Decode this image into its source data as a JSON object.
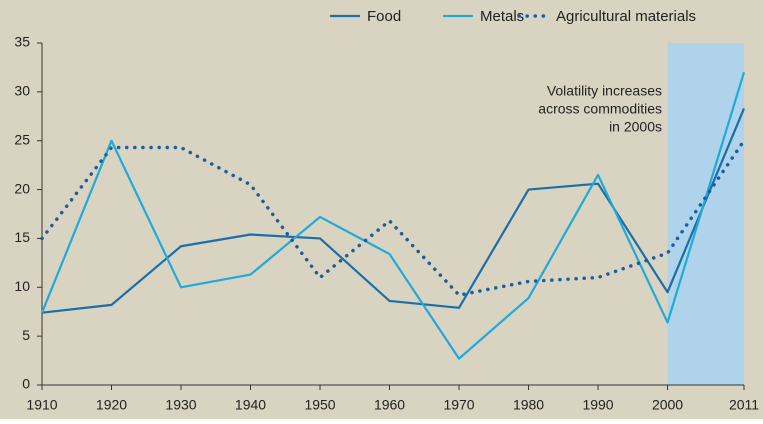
{
  "chart_data": {
    "type": "line",
    "x": [
      1910,
      1920,
      1930,
      1940,
      1950,
      1960,
      1970,
      1980,
      1990,
      2000,
      2011
    ],
    "series": [
      {
        "name": "Food",
        "color": "#1b6ea8",
        "style": "solid",
        "values": [
          7.4,
          8.2,
          14.2,
          15.4,
          15.0,
          8.6,
          7.9,
          20.0,
          20.6,
          9.5,
          28.3
        ]
      },
      {
        "name": "Metals",
        "color": "#1faad9",
        "style": "solid",
        "values": [
          7.4,
          25.0,
          10.0,
          11.3,
          17.2,
          13.4,
          2.7,
          8.9,
          21.5,
          6.4,
          32.0
        ]
      },
      {
        "name": "Agricultural materials",
        "color": "#1b5d9e",
        "style": "dotted",
        "values": [
          15.0,
          24.3,
          24.3,
          20.5,
          11.0,
          16.8,
          9.2,
          10.6,
          11.0,
          13.5,
          25.0
        ]
      }
    ],
    "xlim": [
      1910,
      2011
    ],
    "xticks": [
      1910,
      1920,
      1930,
      1940,
      1950,
      1960,
      1970,
      1980,
      1990,
      2000,
      2011
    ],
    "ylim": [
      0,
      35
    ],
    "yticks": [
      0,
      5,
      10,
      15,
      20,
      25,
      30,
      35
    ],
    "shaded_range": [
      2000,
      2011
    ],
    "shade_color": "#aed3ea",
    "annotation": [
      "Volatility increases",
      "across commodities",
      "in 2000s"
    ],
    "legend": "top-right",
    "background": "#d9d4c1"
  }
}
